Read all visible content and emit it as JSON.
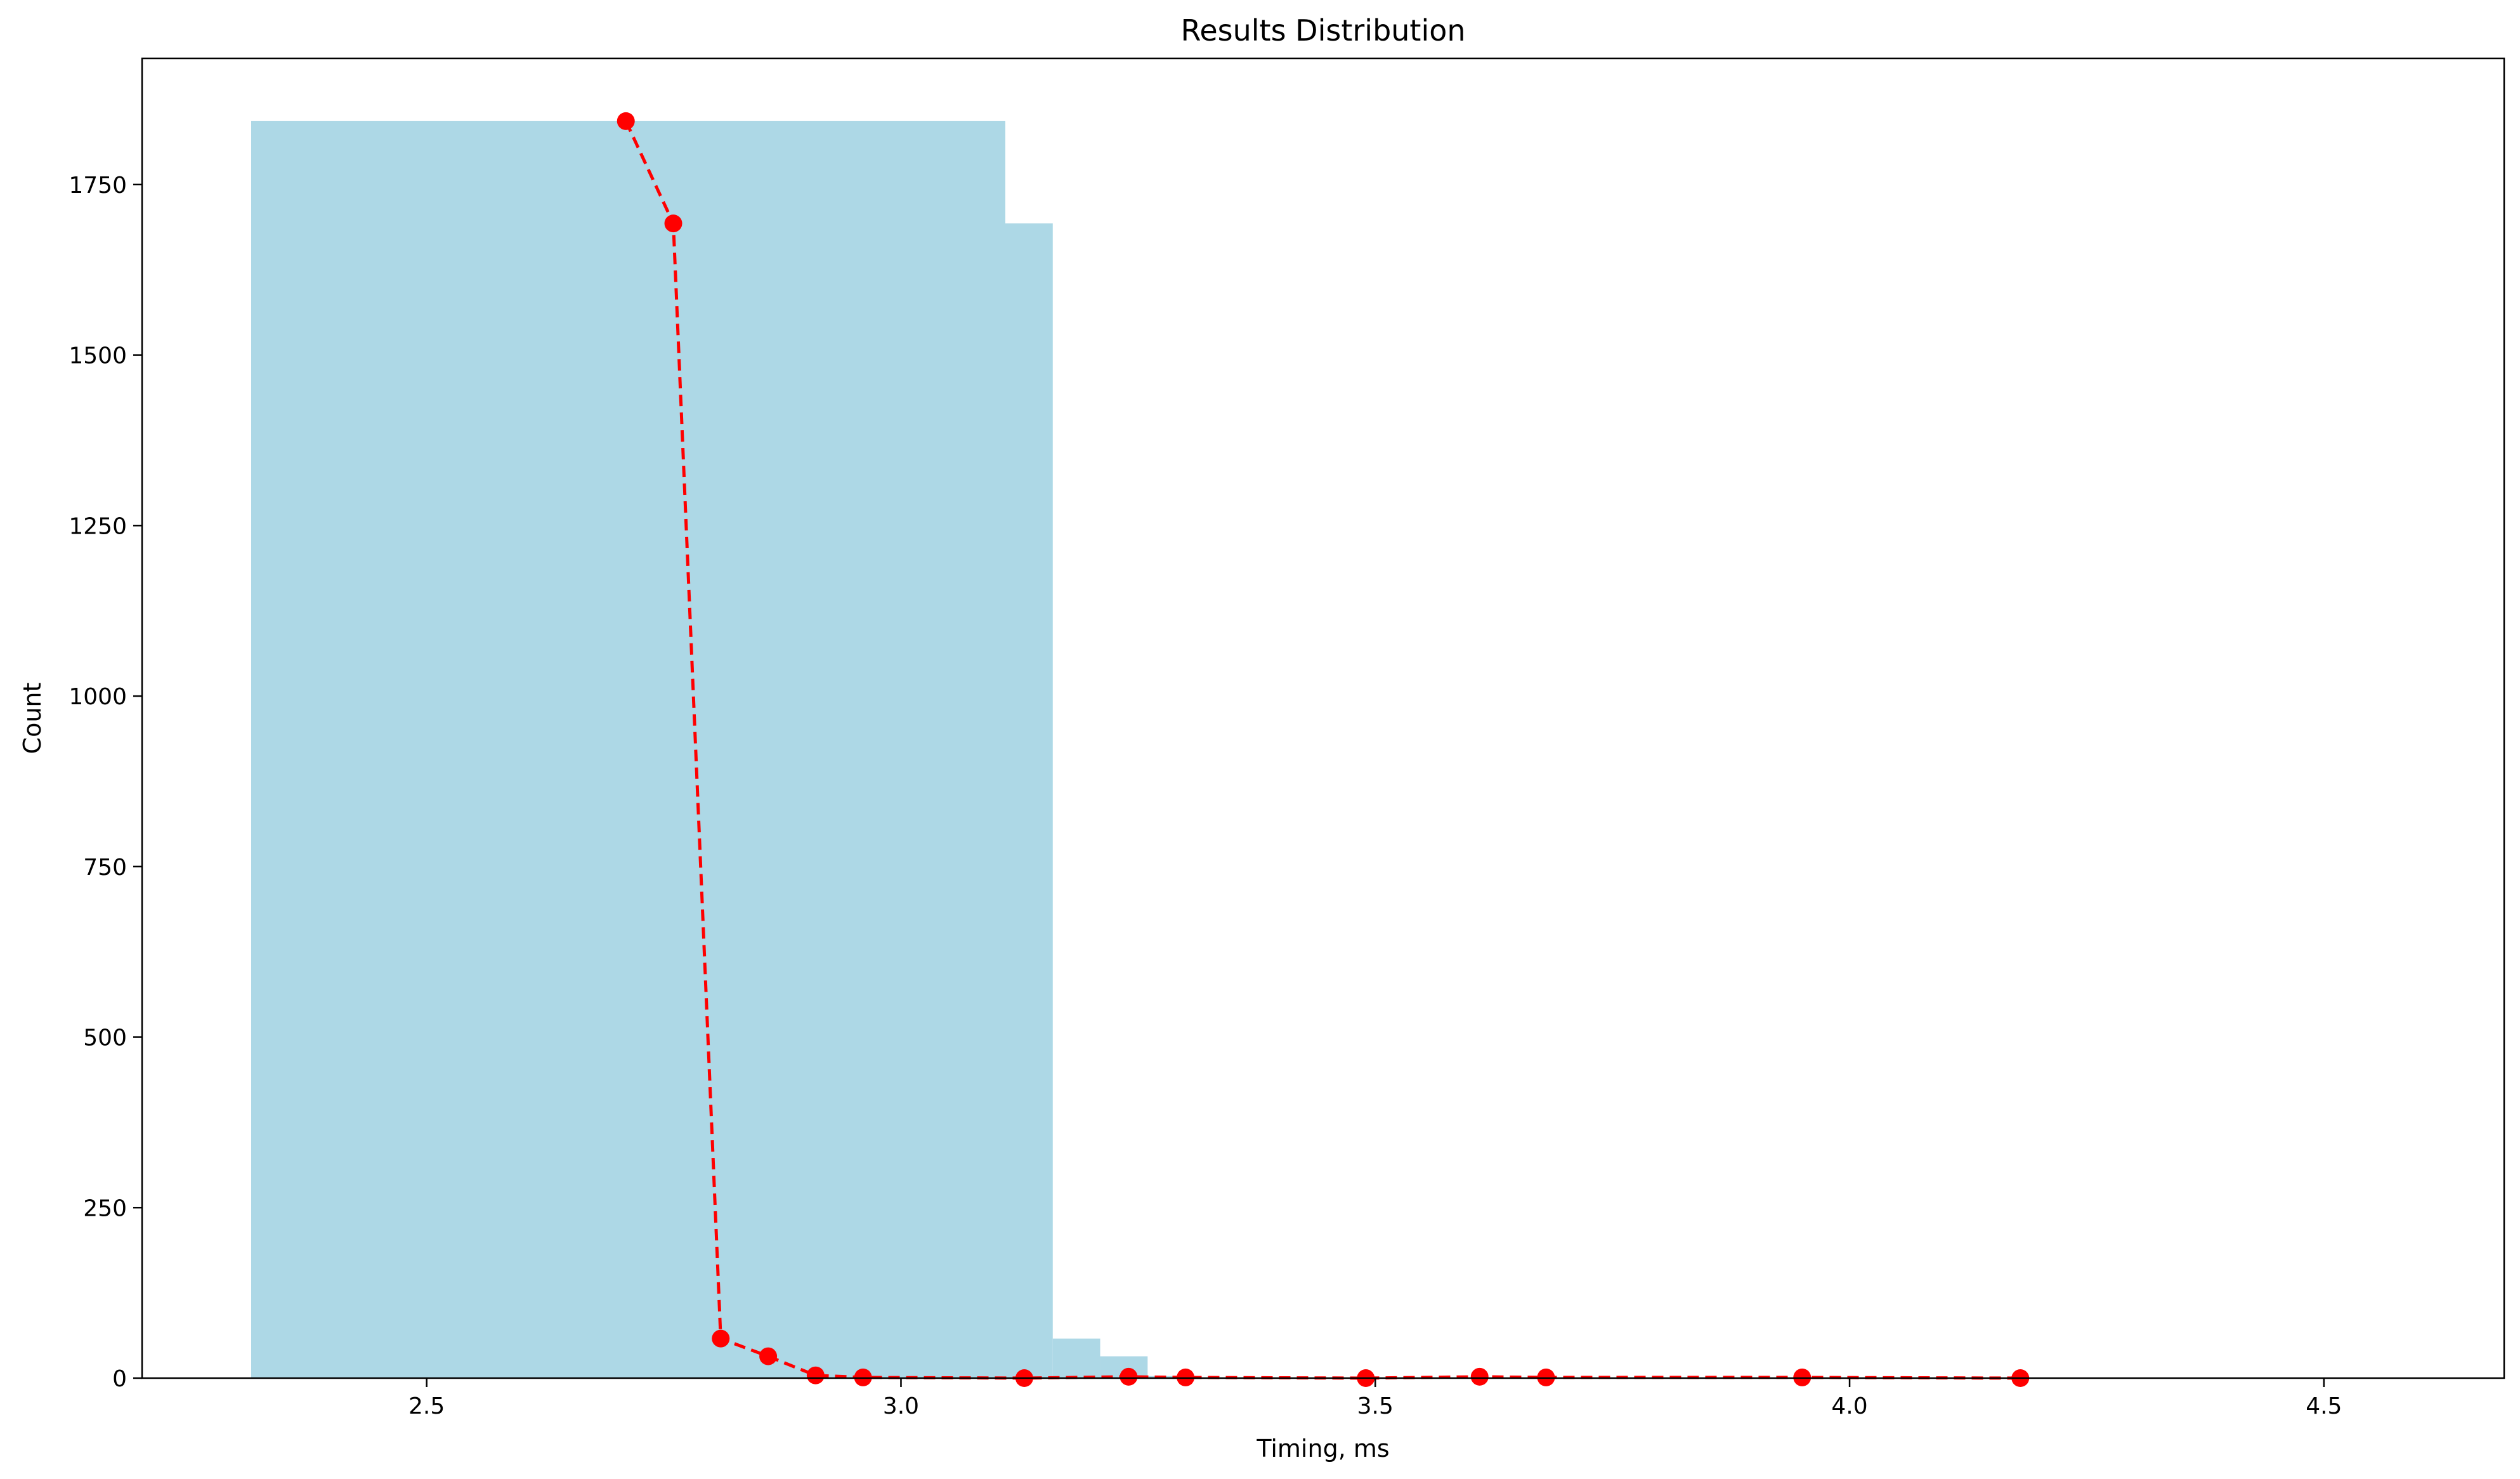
{
  "chart_data": {
    "type": "bar",
    "title": "Results Distribution",
    "xlabel": "Timing, ms",
    "ylabel": "Count",
    "xlim": [
      2.2,
      4.69
    ],
    "ylim": [
      0,
      1935
    ],
    "x_ticks": [
      2.5,
      3.0,
      3.5,
      4.0,
      4.5
    ],
    "x_tick_labels": [
      "2.5",
      "3.0",
      "3.5",
      "4.0",
      "4.5"
    ],
    "y_ticks": [
      0,
      250,
      500,
      750,
      1000,
      1250,
      1500,
      1750
    ],
    "y_tick_labels": [
      "0",
      "250",
      "500",
      "750",
      "1000",
      "1250",
      "1500",
      "1750"
    ],
    "grid": false,
    "histogram": {
      "color": "#add8e6",
      "bins": [
        {
          "x0": 2.315,
          "x1": 3.11,
          "count": 1843
        },
        {
          "x0": 3.11,
          "x1": 3.16,
          "count": 1693
        },
        {
          "x0": 3.16,
          "x1": 3.21,
          "count": 58
        },
        {
          "x0": 3.21,
          "x1": 3.26,
          "count": 32
        },
        {
          "x0": 3.26,
          "x1": 3.31,
          "count": 3
        }
      ]
    },
    "series": [
      {
        "type": "line",
        "style": "dashed",
        "marker": "circle",
        "color": "#ff0000",
        "points": [
          {
            "x": 2.71,
            "y": 1843
          },
          {
            "x": 2.76,
            "y": 1693
          },
          {
            "x": 2.81,
            "y": 58
          },
          {
            "x": 2.86,
            "y": 32
          },
          {
            "x": 2.91,
            "y": 4
          },
          {
            "x": 2.96,
            "y": 1
          },
          {
            "x": 3.13,
            "y": 0
          },
          {
            "x": 3.24,
            "y": 2
          },
          {
            "x": 3.3,
            "y": 1
          },
          {
            "x": 3.49,
            "y": 0
          },
          {
            "x": 3.61,
            "y": 2
          },
          {
            "x": 3.68,
            "y": 1
          },
          {
            "x": 3.95,
            "y": 1
          },
          {
            "x": 4.18,
            "y": 0
          }
        ]
      }
    ]
  }
}
